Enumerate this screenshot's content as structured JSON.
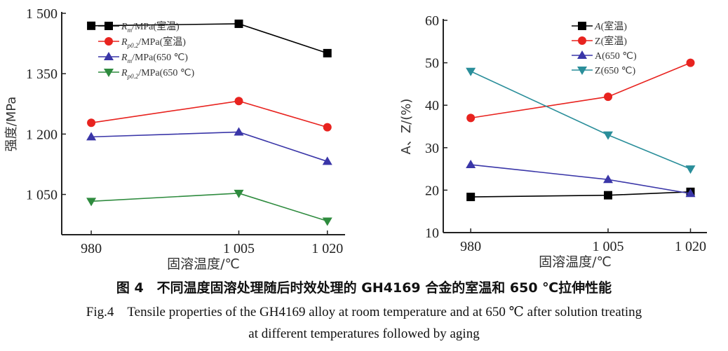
{
  "chart_data": [
    {
      "type": "line",
      "ylabel": "强度/MPa",
      "xlabel": "固溶温度/℃",
      "x": [
        980,
        1005,
        1020
      ],
      "xtick_labels": [
        "980",
        "1 005",
        "1 020"
      ],
      "xlim": [
        975,
        1023
      ],
      "ylim": [
        950,
        1500
      ],
      "yticks": [
        1050,
        1200,
        1350,
        1500
      ],
      "ytick_labels": [
        "1 050",
        "1 200",
        "1 350",
        "1 500"
      ],
      "grid": false,
      "legend_position": "top-center",
      "series": [
        {
          "name": "Rm/MPa(室温)",
          "name_parts": [
            "R",
            "m",
            "/MPa(室温)"
          ],
          "color": "#000000",
          "marker": "square",
          "values": [
            1469,
            1474,
            1401
          ]
        },
        {
          "name": "Rp0.2/MPa(室温)",
          "name_parts": [
            "R",
            "p0.2",
            "/MPa(室温)"
          ],
          "color": "#e8231f",
          "marker": "circle",
          "values": [
            1228,
            1282,
            1217
          ]
        },
        {
          "name": "Rm/MPa(650 ℃)",
          "name_parts": [
            "R",
            "m",
            "/MPa(650 ℃)"
          ],
          "color": "#3a36a8",
          "marker": "triangle-up",
          "values": [
            1193,
            1205,
            1132
          ]
        },
        {
          "name": "Rp0.2/MPa(650 ℃)",
          "name_parts": [
            "R",
            "p0.2",
            "/MPa(650 ℃)"
          ],
          "color": "#2e8b3e",
          "marker": "triangle-down",
          "values": [
            1033,
            1053,
            984
          ]
        }
      ]
    },
    {
      "type": "line",
      "ylabel": "A、Z/(%)",
      "xlabel": "固溶温度/℃",
      "x": [
        980,
        1005,
        1020
      ],
      "xtick_labels": [
        "980",
        "1 005",
        "1 020"
      ],
      "xlim": [
        975,
        1023
      ],
      "ylim": [
        10,
        60
      ],
      "yticks": [
        10,
        20,
        30,
        40,
        50,
        60
      ],
      "ytick_labels": [
        "10",
        "20",
        "30",
        "40",
        "50",
        "60"
      ],
      "grid": false,
      "legend_position": "top-right",
      "series": [
        {
          "name": "A(室温)",
          "name_parts": [
            "A",
            "",
            "(室温)"
          ],
          "color": "#000000",
          "marker": "square",
          "values": [
            18.4,
            18.8,
            19.6
          ]
        },
        {
          "name": "Z(室温)",
          "name_parts": [
            "Z",
            "",
            "(室温)"
          ],
          "color": "#e8231f",
          "marker": "circle",
          "values": [
            37,
            42,
            50
          ]
        },
        {
          "name": "A(650 ℃)",
          "name_parts": [
            "A",
            "",
            "(650 ℃)"
          ],
          "color": "#3a36a8",
          "marker": "triangle-up",
          "values": [
            26,
            22.5,
            19.2
          ]
        },
        {
          "name": "Z(650 ℃)",
          "name_parts": [
            "Z",
            "",
            "(650 ℃)"
          ],
          "color": "#2a8e9a",
          "marker": "triangle-down",
          "values": [
            48,
            33,
            25
          ]
        }
      ]
    }
  ],
  "caption": {
    "cn": "图 4　不同温度固溶处理随后时效处理的 GH4169 合金的室温和 650 ℃拉伸性能",
    "en_line1": "Fig.4　Tensile properties of the GH4169 alloy at room temperature and at 650 ℃ after solution treating",
    "en_line2": "at different temperatures followed by aging"
  }
}
